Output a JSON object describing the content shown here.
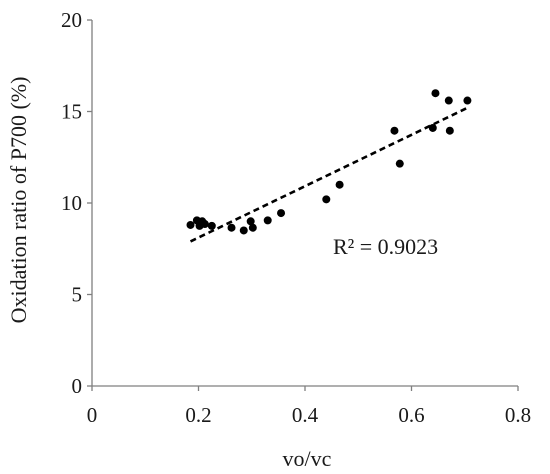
{
  "chart_data": {
    "type": "scatter",
    "xlabel": "vo/vc",
    "ylabel": "Oxidation ratio of P700 (%)",
    "xlim": [
      0,
      0.8
    ],
    "ylim": [
      0,
      20
    ],
    "x_ticks": [
      "0",
      "0.2",
      "0.4",
      "0.6",
      "0.8"
    ],
    "y_ticks": [
      "0",
      "5",
      "10",
      "15",
      "20"
    ],
    "grid": false,
    "legend": "none",
    "series": [
      {
        "points": [
          {
            "x": 0.185,
            "y": 8.8
          },
          {
            "x": 0.197,
            "y": 9.05
          },
          {
            "x": 0.202,
            "y": 8.75
          },
          {
            "x": 0.207,
            "y": 9.0
          },
          {
            "x": 0.212,
            "y": 8.85
          },
          {
            "x": 0.225,
            "y": 8.75
          },
          {
            "x": 0.262,
            "y": 8.65
          },
          {
            "x": 0.285,
            "y": 8.5
          },
          {
            "x": 0.298,
            "y": 9.0
          },
          {
            "x": 0.302,
            "y": 8.65
          },
          {
            "x": 0.33,
            "y": 9.05
          },
          {
            "x": 0.355,
            "y": 9.45
          },
          {
            "x": 0.44,
            "y": 10.2
          },
          {
            "x": 0.465,
            "y": 11.0
          },
          {
            "x": 0.568,
            "y": 13.95
          },
          {
            "x": 0.578,
            "y": 12.15
          },
          {
            "x": 0.64,
            "y": 14.1
          },
          {
            "x": 0.645,
            "y": 16.0
          },
          {
            "x": 0.67,
            "y": 15.6
          },
          {
            "x": 0.672,
            "y": 13.95
          },
          {
            "x": 0.705,
            "y": 15.6
          }
        ]
      }
    ],
    "trendline": {
      "style": "dashed",
      "x_start": 0.185,
      "y_start": 7.9,
      "x_end": 0.705,
      "y_end": 15.2
    },
    "annotation": "R² = 0.9023"
  },
  "colors": {
    "marker": "#000000",
    "trendline": "#000000",
    "axis": "#7f7f7f",
    "text": "#1a1a1a"
  }
}
